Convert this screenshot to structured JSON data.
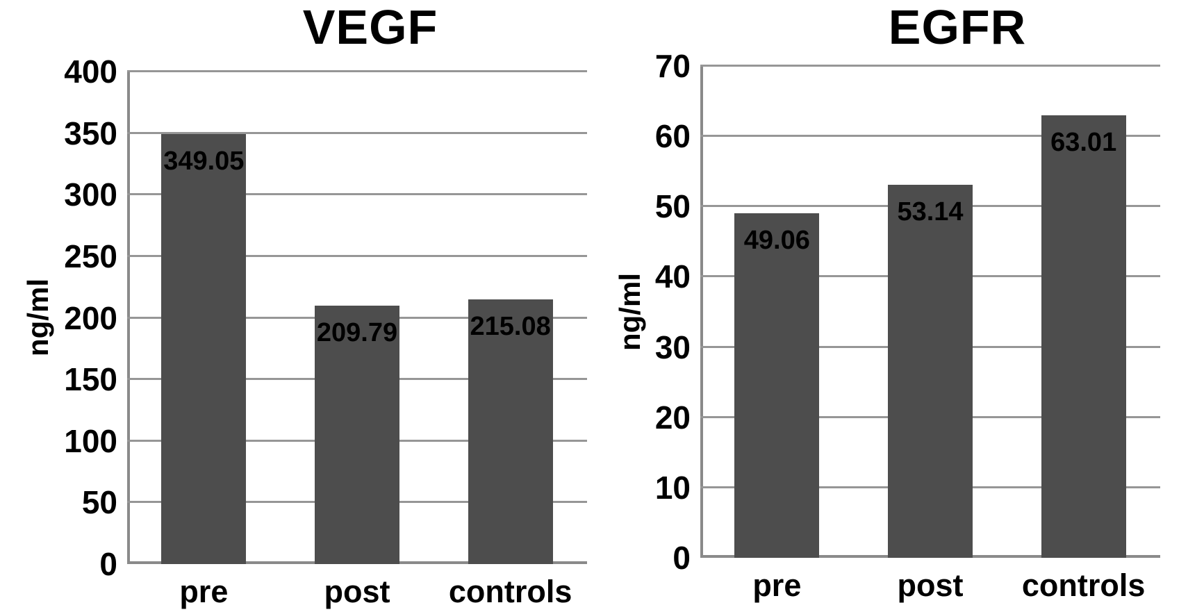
{
  "figure": {
    "background": "#ffffff",
    "bar_color": "#4d4d4d",
    "gridline_color": "#969696",
    "axis_color": "#8a8a8a",
    "text_color": "#000000"
  },
  "chart_data": [
    {
      "type": "bar",
      "title": "VEGF",
      "ylabel": "ng/ml",
      "xlabel": "",
      "categories": [
        "pre",
        "post",
        "controls"
      ],
      "values": [
        349.05,
        209.79,
        215.08
      ],
      "value_labels": [
        "349.05",
        "209.79",
        "215.08"
      ],
      "ylim": [
        0,
        400
      ],
      "yticks": [
        0,
        50,
        100,
        150,
        200,
        250,
        300,
        350,
        400
      ],
      "grid": true,
      "legend": "none"
    },
    {
      "type": "bar",
      "title": "EGFR",
      "ylabel": "ng/ml",
      "xlabel": "",
      "categories": [
        "pre",
        "post",
        "controls"
      ],
      "values": [
        49.06,
        53.14,
        63.01
      ],
      "value_labels": [
        "49.06",
        "53.14",
        "63.01"
      ],
      "ylim": [
        0,
        70
      ],
      "yticks": [
        0,
        10,
        20,
        30,
        40,
        50,
        60,
        70
      ],
      "grid": true,
      "legend": "none"
    }
  ]
}
